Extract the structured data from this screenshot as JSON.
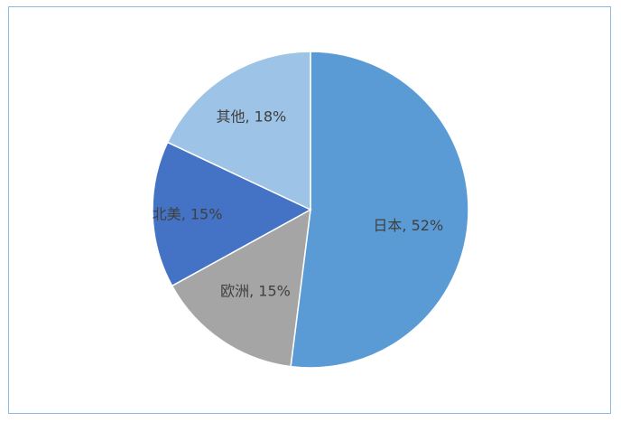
{
  "chart_data": {
    "type": "pie",
    "start_angle": "12 o'clock",
    "direction": "clockwise",
    "slices": [
      {
        "label": "日本",
        "value": 52,
        "display": "日本, 52%",
        "color": "#5b9bd5"
      },
      {
        "label": "欧洲",
        "value": 15,
        "display": "欧洲, 15%",
        "color": "#a5a5a5"
      },
      {
        "label": "北美",
        "value": 15,
        "display": "北美, 15%",
        "color": "#4472c4"
      },
      {
        "label": "其他",
        "value": 18,
        "display": "其他, 18%",
        "color": "#9dc3e6"
      }
    ],
    "legend": "none",
    "frame_color": "#8db9e0"
  }
}
